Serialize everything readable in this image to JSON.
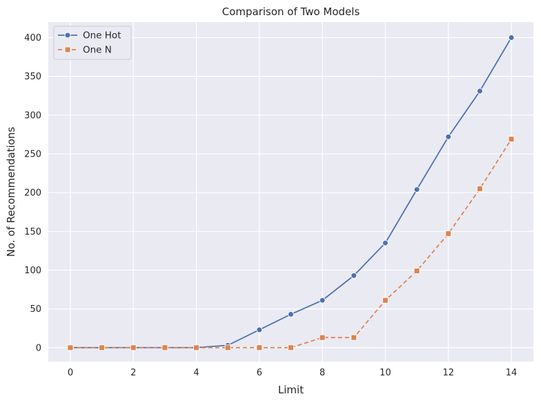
{
  "chart_data": {
    "type": "line",
    "title": "Comparison of Two Models",
    "xlabel": "Limit",
    "ylabel": "No. of Recommendations",
    "xlim": [
      -0.7,
      14.7
    ],
    "ylim": [
      -18,
      420
    ],
    "xticks": [
      0,
      2,
      4,
      6,
      8,
      10,
      12,
      14
    ],
    "yticks": [
      0,
      50,
      100,
      150,
      200,
      250,
      300,
      350,
      400
    ],
    "grid": true,
    "legend_position": "top-left",
    "x": [
      0,
      1,
      2,
      3,
      4,
      5,
      6,
      7,
      8,
      9,
      10,
      11,
      12,
      13,
      14
    ],
    "series": [
      {
        "name": "One Hot",
        "color": "#4c72b0",
        "line_style": "solid",
        "marker": "circle",
        "values": [
          0,
          0,
          0,
          0,
          0,
          3,
          23,
          43,
          61,
          93,
          135,
          204,
          272,
          331,
          400
        ]
      },
      {
        "name": "One N",
        "color": "#dd8452",
        "line_style": "dashed",
        "marker": "square",
        "values": [
          0,
          0,
          0,
          0,
          0,
          0,
          0,
          0,
          13,
          13,
          61,
          99,
          147,
          205,
          269
        ]
      }
    ],
    "colors": {
      "plot_background": "#eaeaf2",
      "grid": "#ffffff"
    }
  }
}
